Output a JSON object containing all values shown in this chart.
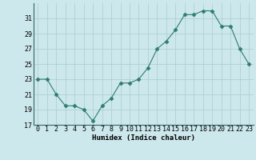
{
  "x": [
    0,
    1,
    2,
    3,
    4,
    5,
    6,
    7,
    8,
    9,
    10,
    11,
    12,
    13,
    14,
    15,
    16,
    17,
    18,
    19,
    20,
    21,
    22,
    23
  ],
  "y": [
    23,
    23,
    21,
    19.5,
    19.5,
    19,
    17.5,
    19.5,
    20.5,
    22.5,
    22.5,
    23,
    24.5,
    27,
    28,
    29.5,
    31.5,
    31.5,
    32,
    32,
    30,
    30,
    27,
    25
  ],
  "xlabel": "Humidex (Indice chaleur)",
  "ylim": [
    17,
    33
  ],
  "yticks": [
    17,
    19,
    21,
    23,
    25,
    27,
    29,
    31
  ],
  "xtick_labels": [
    "0",
    "1",
    "2",
    "3",
    "4",
    "5",
    "6",
    "7",
    "8",
    "9",
    "10",
    "11",
    "12",
    "13",
    "14",
    "15",
    "16",
    "17",
    "18",
    "19",
    "20",
    "21",
    "22",
    "23"
  ],
  "line_color": "#2e7d6e",
  "marker": "D",
  "marker_size": 2.5,
  "bg_color": "#cce8ec",
  "grid_color": "#aacccc",
  "label_fontsize": 6.5,
  "tick_fontsize": 6.0
}
